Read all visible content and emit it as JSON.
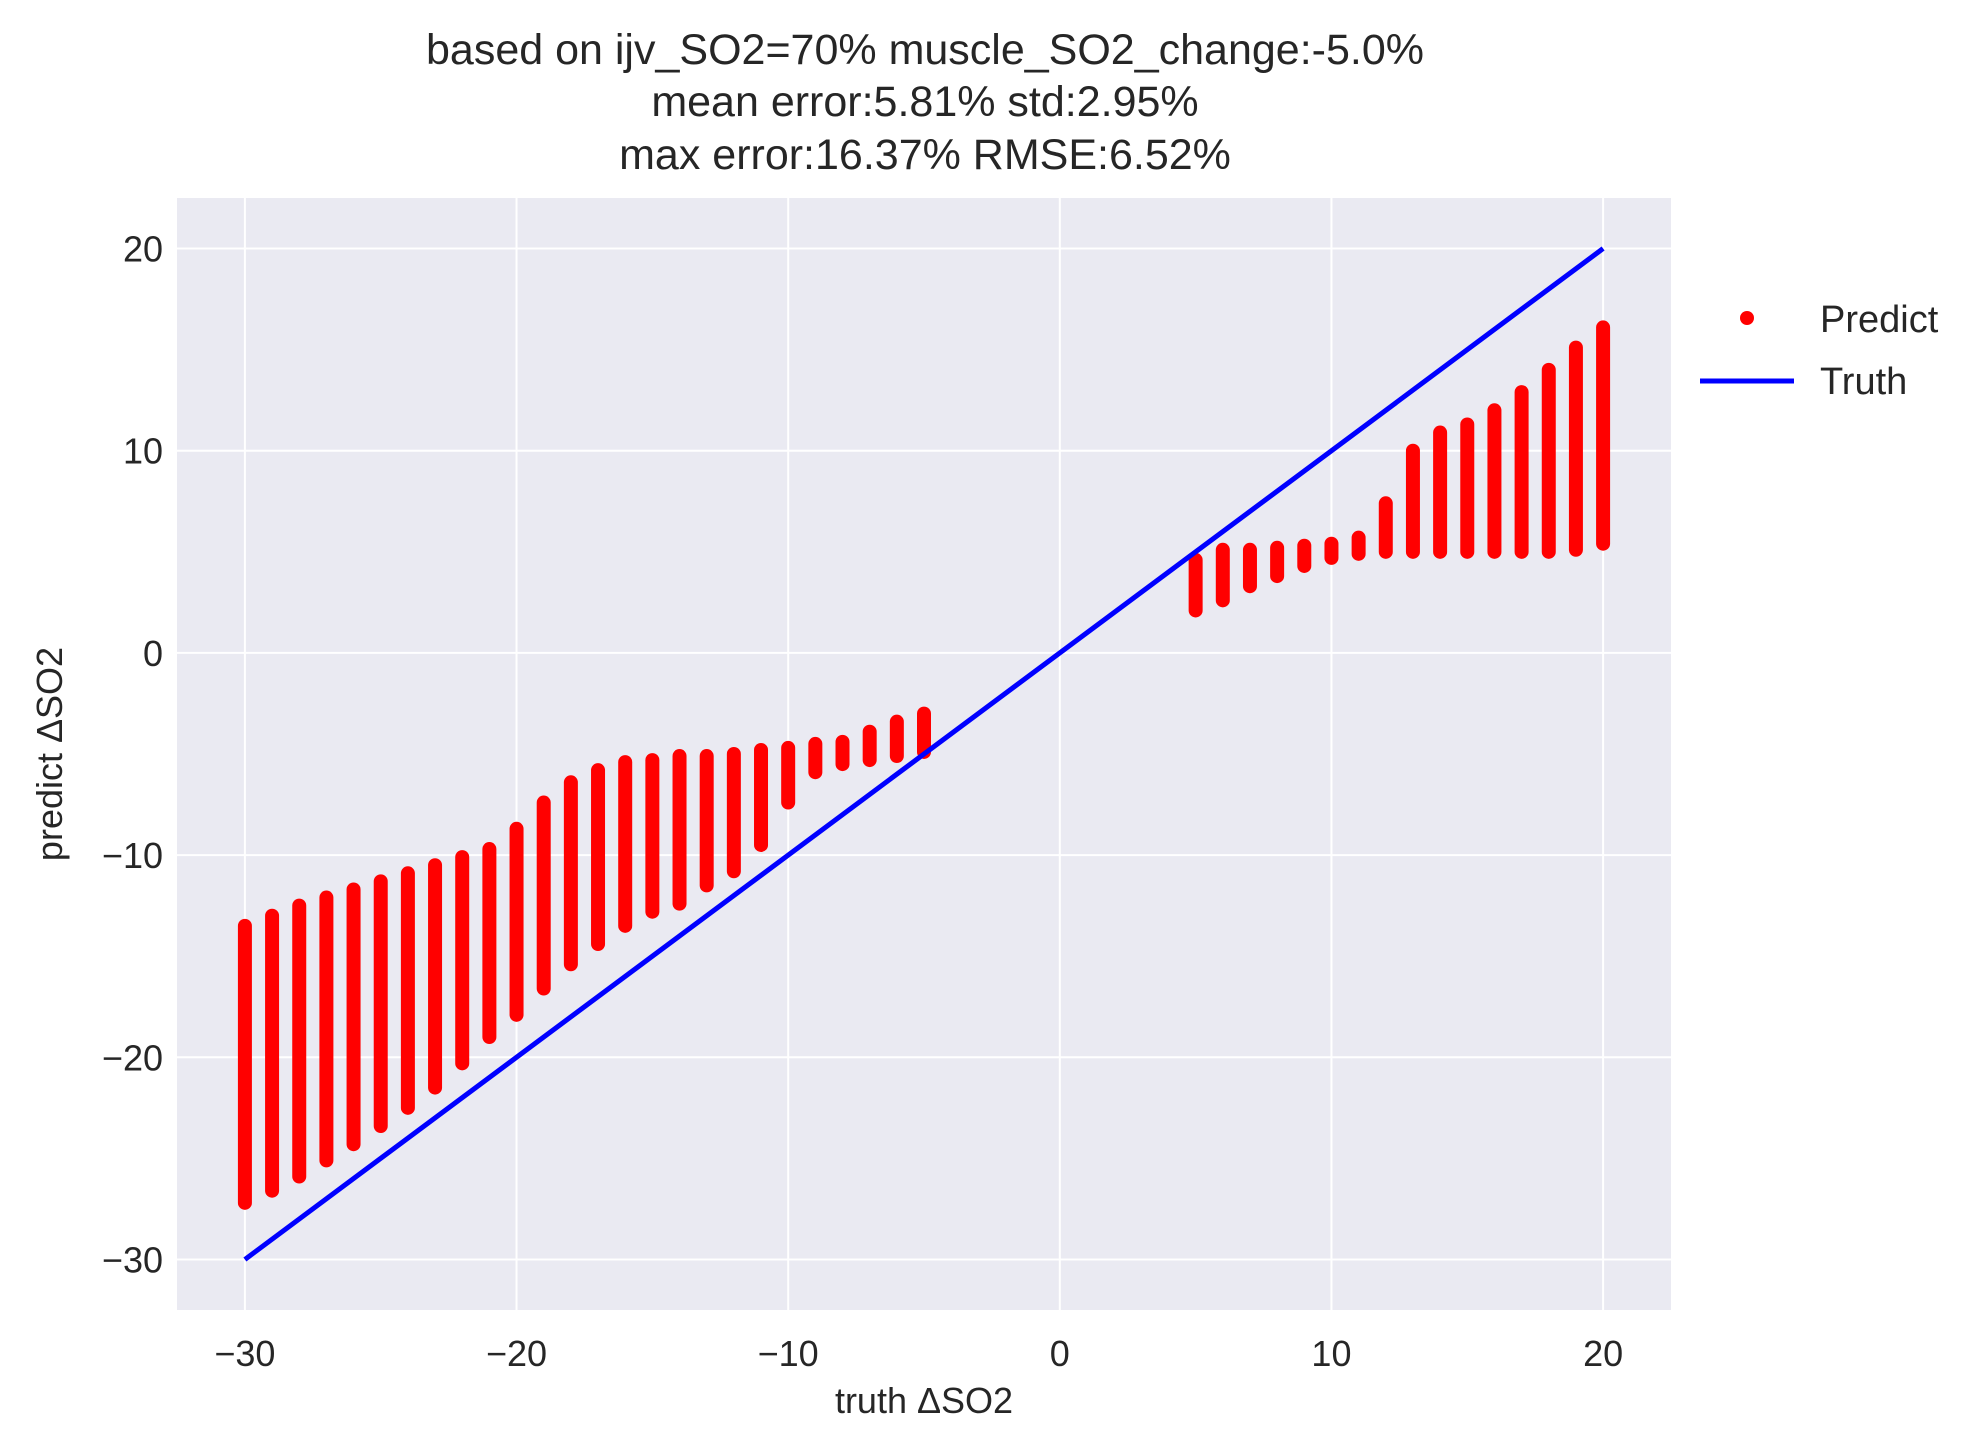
{
  "chart_data": {
    "type": "scatter",
    "title_lines": [
      "based on ijv_SO2=70% muscle_SO2_change:-5.0%",
      "mean error:5.81% std:2.95%",
      "max error:16.37% RMSE:6.52%"
    ],
    "xlabel": "truth ΔSO2",
    "ylabel": "predict ΔSO2",
    "xlim": [
      -32.5,
      22.5
    ],
    "ylim": [
      -32.5,
      22.5
    ],
    "xticks": [
      -30,
      -20,
      -10,
      0,
      10,
      20
    ],
    "yticks": [
      -30,
      -20,
      -10,
      0,
      10,
      20
    ],
    "xtick_labels": [
      "−30",
      "−20",
      "−10",
      "0",
      "10",
      "20"
    ],
    "ytick_labels": [
      "−30",
      "−20",
      "−10",
      "0",
      "10",
      "20"
    ],
    "grid": true,
    "background": "#eaeaf2",
    "legend": {
      "placement": "outside-right-top"
    },
    "series": [
      {
        "name": "Predict",
        "kind": "points",
        "color": "#ff0000",
        "note": "vertical bands of many points at each integer truth value; min/max of predicted values per band",
        "bands": [
          {
            "x": -30,
            "ymin": -27.2,
            "ymax": -13.5
          },
          {
            "x": -29,
            "ymin": -26.6,
            "ymax": -13.0
          },
          {
            "x": -28,
            "ymin": -25.9,
            "ymax": -12.5
          },
          {
            "x": -27,
            "ymin": -25.1,
            "ymax": -12.1
          },
          {
            "x": -26,
            "ymin": -24.3,
            "ymax": -11.7
          },
          {
            "x": -25,
            "ymin": -23.4,
            "ymax": -11.3
          },
          {
            "x": -24,
            "ymin": -22.5,
            "ymax": -10.9
          },
          {
            "x": -23,
            "ymin": -21.5,
            "ymax": -10.5
          },
          {
            "x": -22,
            "ymin": -20.3,
            "ymax": -10.1
          },
          {
            "x": -21,
            "ymin": -19.0,
            "ymax": -9.7
          },
          {
            "x": -20,
            "ymin": -17.9,
            "ymax": -8.7
          },
          {
            "x": -19,
            "ymin": -16.6,
            "ymax": -7.4
          },
          {
            "x": -18,
            "ymin": -15.4,
            "ymax": -6.4
          },
          {
            "x": -17,
            "ymin": -14.4,
            "ymax": -5.8
          },
          {
            "x": -16,
            "ymin": -13.5,
            "ymax": -5.4
          },
          {
            "x": -15,
            "ymin": -12.8,
            "ymax": -5.3
          },
          {
            "x": -14,
            "ymin": -12.4,
            "ymax": -5.1
          },
          {
            "x": -13,
            "ymin": -11.5,
            "ymax": -5.1
          },
          {
            "x": -12,
            "ymin": -10.8,
            "ymax": -5.0
          },
          {
            "x": -11,
            "ymin": -9.5,
            "ymax": -4.8
          },
          {
            "x": -10,
            "ymin": -7.4,
            "ymax": -4.7
          },
          {
            "x": -9,
            "ymin": -5.9,
            "ymax": -4.5
          },
          {
            "x": -8,
            "ymin": -5.5,
            "ymax": -4.4
          },
          {
            "x": -7,
            "ymin": -5.3,
            "ymax": -3.9
          },
          {
            "x": -6,
            "ymin": -5.1,
            "ymax": -3.4
          },
          {
            "x": -5,
            "ymin": -4.9,
            "ymax": -3.0
          },
          {
            "x": 5,
            "ymin": 2.1,
            "ymax": 4.6
          },
          {
            "x": 6,
            "ymin": 2.6,
            "ymax": 5.1
          },
          {
            "x": 7,
            "ymin": 3.3,
            "ymax": 5.1
          },
          {
            "x": 8,
            "ymin": 3.8,
            "ymax": 5.2
          },
          {
            "x": 9,
            "ymin": 4.3,
            "ymax": 5.3
          },
          {
            "x": 10,
            "ymin": 4.7,
            "ymax": 5.4
          },
          {
            "x": 11,
            "ymin": 4.9,
            "ymax": 5.7
          },
          {
            "x": 12,
            "ymin": 5.0,
            "ymax": 7.4
          },
          {
            "x": 13,
            "ymin": 5.0,
            "ymax": 10.0
          },
          {
            "x": 14,
            "ymin": 5.0,
            "ymax": 10.9
          },
          {
            "x": 15,
            "ymin": 5.0,
            "ymax": 11.3
          },
          {
            "x": 16,
            "ymin": 5.0,
            "ymax": 12.0
          },
          {
            "x": 17,
            "ymin": 5.0,
            "ymax": 12.9
          },
          {
            "x": 18,
            "ymin": 5.0,
            "ymax": 14.0
          },
          {
            "x": 19,
            "ymin": 5.1,
            "ymax": 15.1
          },
          {
            "x": 20,
            "ymin": 5.4,
            "ymax": 16.1
          }
        ]
      },
      {
        "name": "Truth",
        "kind": "line",
        "color": "#0000ff",
        "x": [
          -30,
          20
        ],
        "y": [
          -30,
          20
        ]
      }
    ]
  }
}
